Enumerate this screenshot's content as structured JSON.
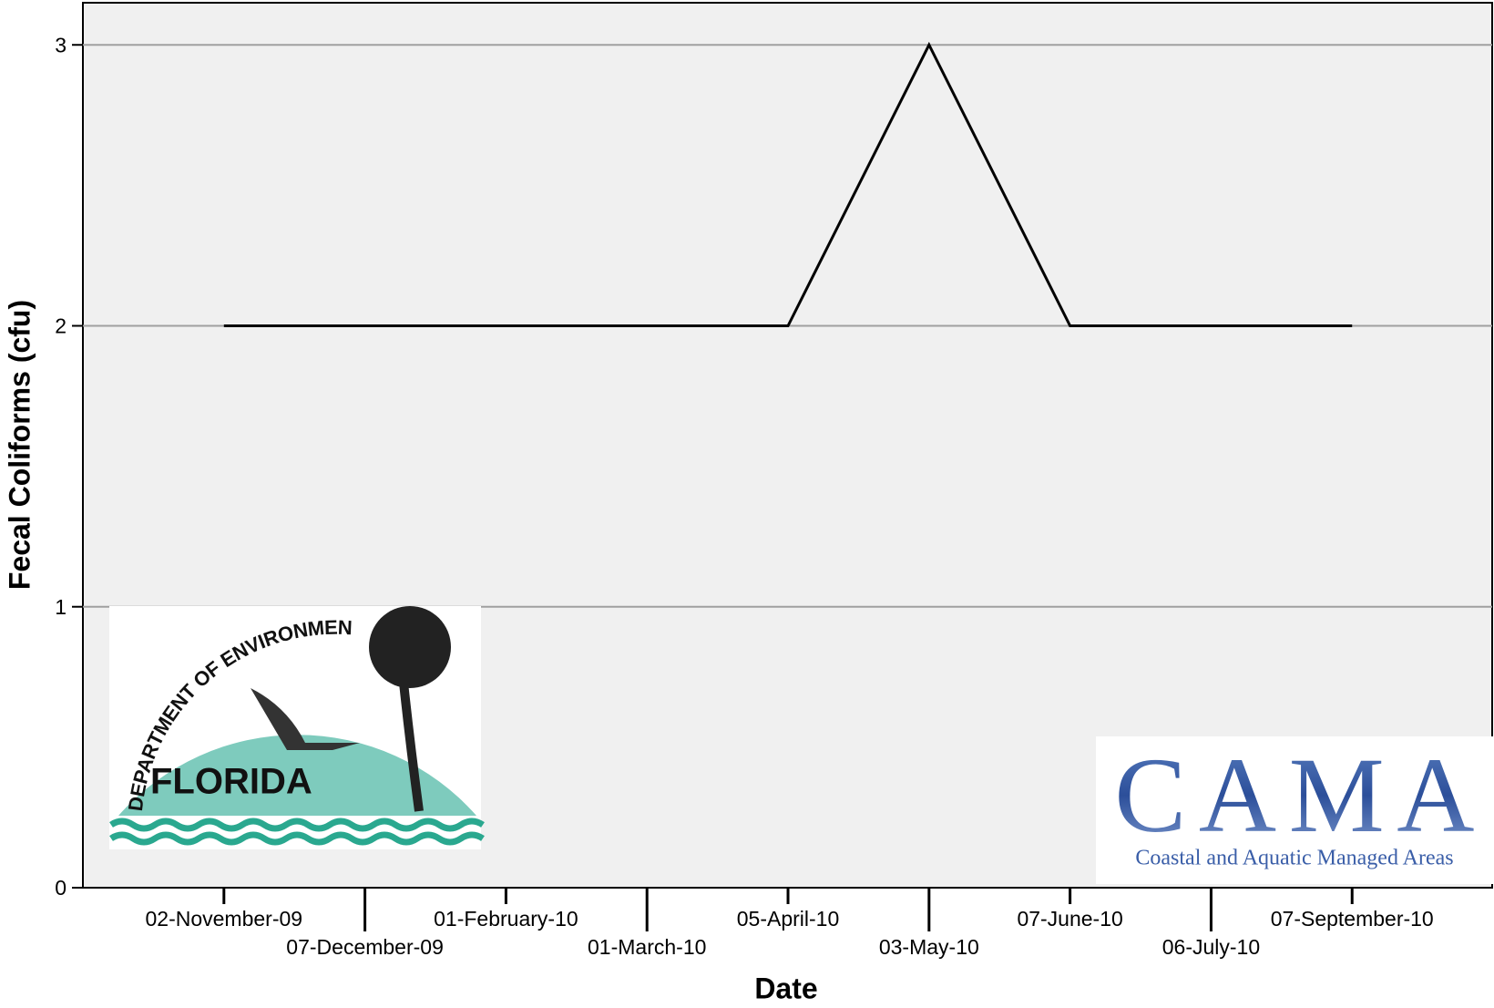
{
  "chart_data": {
    "type": "line",
    "y_label": "Fecal Coliforms (cfu)",
    "x_label": "Date",
    "categories": [
      "02-November-09",
      "07-December-09",
      "01-February-10",
      "01-March-10",
      "05-April-10",
      "03-May-10",
      "07-June-10",
      "06-July-10",
      "07-September-10"
    ],
    "series": [
      {
        "name": "Fecal Coliforms",
        "color": "#000000",
        "values": [
          2,
          2,
          2,
          2,
          2,
          3,
          2,
          2,
          2
        ]
      }
    ],
    "ylim": [
      0,
      3.15
    ],
    "yticks": [
      0,
      1,
      2,
      3
    ],
    "grid": true
  },
  "logos": {
    "fdep_arc": "DEPARTMENT OF ENVIRONMENTAL PROTECTION",
    "fdep_name": "FLORIDA",
    "cama_name": "CAMA",
    "cama_full": "Coastal and Aquatic Managed Areas"
  }
}
